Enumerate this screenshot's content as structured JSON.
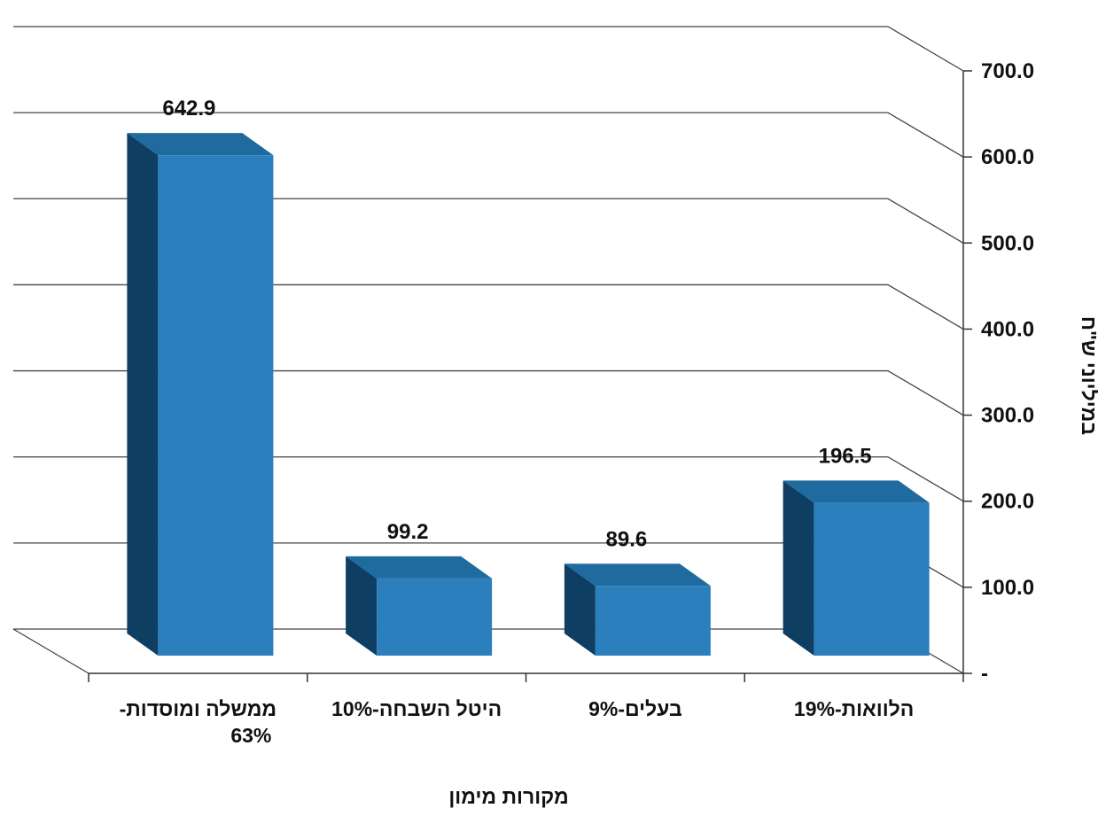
{
  "chart_data": {
    "type": "bar",
    "categories": [
      {
        "line1": "ממשלה ומוסדות-",
        "line2": "63%"
      },
      {
        "line1": "היטל השבחה-10%",
        "line2": ""
      },
      {
        "line1": "בעלים-9%",
        "line2": ""
      },
      {
        "line1": "הלוואות-19%",
        "line2": ""
      }
    ],
    "values": [
      642.9,
      99.2,
      89.6,
      196.5
    ],
    "data_labels": [
      "642.9",
      "99.2",
      "89.6",
      "196.5"
    ],
    "xlabel": "מקורות מימון",
    "ylabel": "במיליוני ש\"ח",
    "ylim": [
      0,
      700
    ],
    "y_ticks": [
      "-",
      "100.0",
      "200.0",
      "300.0",
      "400.0",
      "500.0",
      "600.0",
      "700.0"
    ],
    "y_axis_side": "right",
    "grid": true,
    "three_d": true,
    "colors": {
      "bar_front": "#2b7fbd",
      "bar_side": "#0e3f63",
      "bar_top": "#1f6a9e",
      "gridline": "#444444"
    }
  }
}
